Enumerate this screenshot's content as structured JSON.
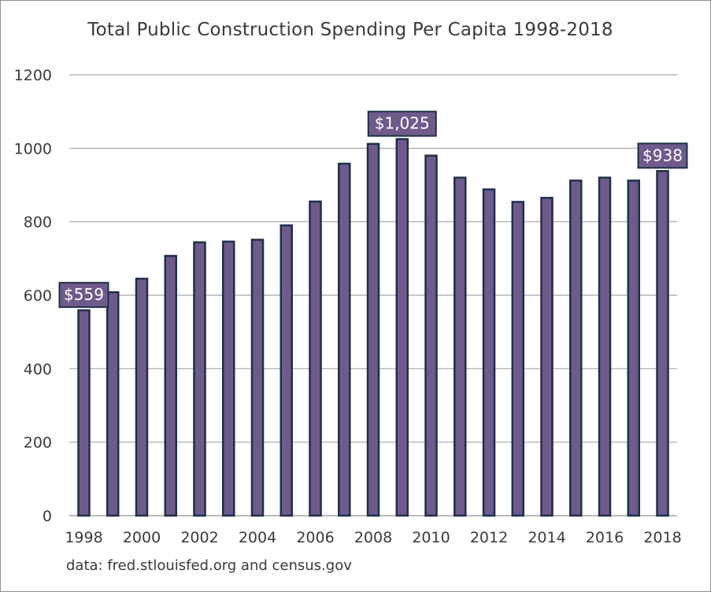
{
  "chart_data": {
    "type": "bar",
    "title": "Total Public Construction Spending Per Capita 1998-2018",
    "source": "data: fred.stlouisfed.org and census.gov",
    "categories": [
      "1998",
      "1999",
      "2000",
      "2001",
      "2002",
      "2003",
      "2004",
      "2005",
      "2006",
      "2007",
      "2008",
      "2009",
      "2010",
      "2011",
      "2012",
      "2013",
      "2014",
      "2015",
      "2016",
      "2017",
      "2018"
    ],
    "x_tick_labels": [
      "1998",
      "2000",
      "2002",
      "2004",
      "2006",
      "2008",
      "2010",
      "2012",
      "2014",
      "2016",
      "2018"
    ],
    "values": [
      559,
      608,
      645,
      707,
      744,
      746,
      751,
      790,
      855,
      958,
      1012,
      1025,
      980,
      920,
      888,
      854,
      865,
      912,
      920,
      912,
      938
    ],
    "ylim": [
      0,
      1200
    ],
    "y_ticks": [
      0,
      200,
      400,
      600,
      800,
      1000,
      1200
    ],
    "grid": true,
    "annotations": [
      {
        "category": "1998",
        "label": "$559"
      },
      {
        "category": "2009",
        "label": "$1,025"
      },
      {
        "category": "2018",
        "label": "$938"
      }
    ],
    "colors": {
      "bar_fill": "#6e5b8c",
      "bar_stroke": "#1f2f4a",
      "callout_fill": "#6e5b8c",
      "callout_stroke": "#1f2f4a",
      "grid": "#a6a6a6",
      "text": "#3a3a3a"
    }
  }
}
